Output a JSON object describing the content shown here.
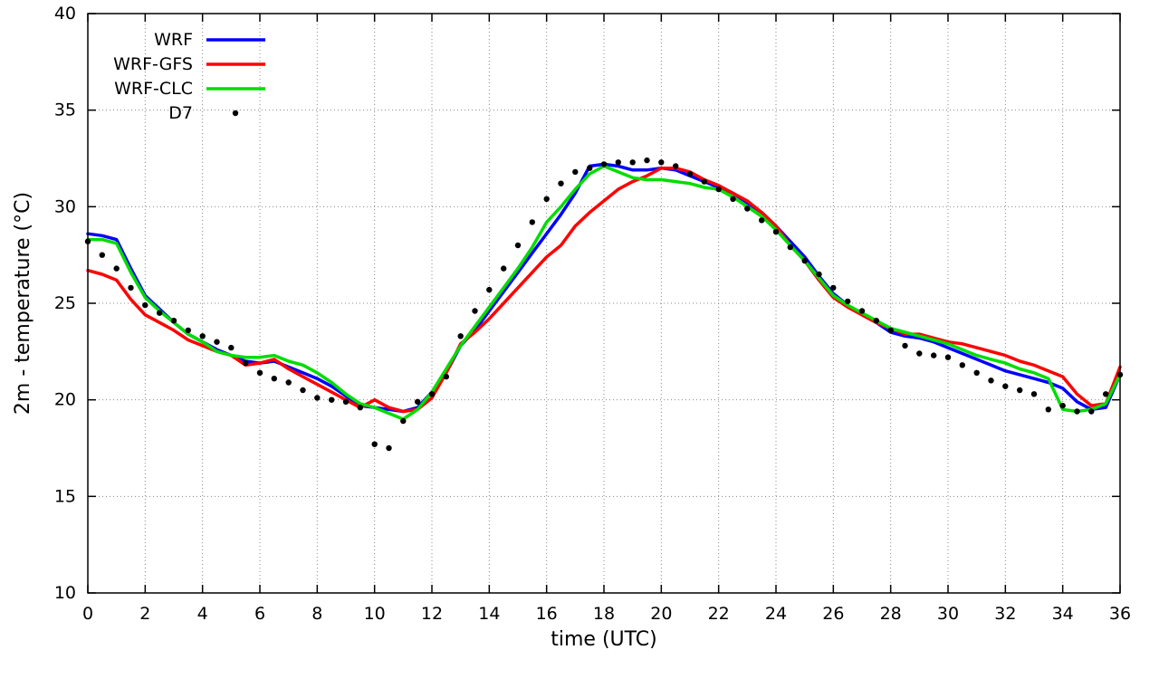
{
  "figure": {
    "background": "#ffffff",
    "grid_color": "#888888",
    "axis_color": "#000000"
  },
  "chart_data": {
    "type": "line",
    "title": "",
    "xlabel": "time (UTC)",
    "ylabel": "2m - temperature (°C)",
    "xlim": [
      0,
      36
    ],
    "ylim": [
      10,
      40
    ],
    "xticks": [
      0,
      2,
      4,
      6,
      8,
      10,
      12,
      14,
      16,
      18,
      20,
      22,
      24,
      26,
      28,
      30,
      32,
      34,
      36
    ],
    "yticks": [
      10,
      15,
      20,
      25,
      30,
      35,
      40
    ],
    "grid": "dotted",
    "legend_position": "top-left",
    "x": [
      0,
      0.5,
      1,
      1.5,
      2,
      2.5,
      3,
      3.5,
      4,
      4.5,
      5,
      5.5,
      6,
      6.5,
      7,
      7.5,
      8,
      8.5,
      9,
      9.5,
      10,
      10.5,
      11,
      11.5,
      12,
      12.5,
      13,
      13.5,
      14,
      14.5,
      15,
      15.5,
      16,
      16.5,
      17,
      17.5,
      18,
      18.5,
      19,
      19.5,
      20,
      20.5,
      21,
      21.5,
      22,
      22.5,
      23,
      23.5,
      24,
      24.5,
      25,
      25.5,
      26,
      26.5,
      27,
      27.5,
      28,
      28.5,
      29,
      29.5,
      30,
      30.5,
      31,
      31.5,
      32,
      32.5,
      33,
      33.5,
      34,
      34.5,
      35,
      35.5,
      36
    ],
    "series": [
      {
        "name": "WRF",
        "color": "#0000ff",
        "style": "line",
        "width": 3.5,
        "values": [
          28.6,
          28.5,
          28.3,
          26.8,
          25.4,
          24.7,
          24.0,
          23.4,
          23.0,
          22.6,
          22.3,
          22.0,
          21.9,
          22.0,
          21.7,
          21.4,
          21.1,
          20.7,
          20.2,
          19.7,
          19.6,
          19.5,
          19.4,
          19.6,
          20.4,
          21.4,
          22.8,
          23.6,
          24.6,
          25.6,
          26.6,
          27.6,
          28.6,
          29.6,
          30.7,
          32.1,
          32.2,
          32.1,
          31.9,
          31.9,
          32.0,
          31.9,
          31.6,
          31.3,
          31.0,
          30.7,
          30.2,
          29.7,
          29.0,
          28.2,
          27.4,
          26.4,
          25.5,
          24.9,
          24.4,
          24.0,
          23.5,
          23.3,
          23.2,
          23.0,
          22.7,
          22.4,
          22.1,
          21.8,
          21.5,
          21.3,
          21.1,
          20.9,
          20.6,
          19.9,
          19.5,
          19.6,
          21.3
        ]
      },
      {
        "name": "WRF-GFS",
        "color": "#ff0000",
        "style": "line",
        "width": 3.5,
        "values": [
          26.7,
          26.5,
          26.2,
          25.2,
          24.4,
          24.0,
          23.6,
          23.1,
          22.8,
          22.5,
          22.3,
          21.8,
          21.9,
          22.1,
          21.6,
          21.2,
          20.8,
          20.4,
          20.0,
          19.6,
          20.0,
          19.6,
          19.4,
          19.5,
          20.1,
          21.4,
          22.9,
          23.5,
          24.2,
          25.0,
          25.8,
          26.6,
          27.4,
          28.0,
          29.0,
          29.7,
          30.3,
          30.9,
          31.3,
          31.6,
          32.0,
          32.0,
          31.8,
          31.4,
          31.1,
          30.7,
          30.3,
          29.7,
          29.0,
          28.0,
          27.2,
          26.2,
          25.3,
          24.8,
          24.4,
          24.0,
          23.7,
          23.4,
          23.4,
          23.2,
          23.0,
          22.9,
          22.7,
          22.5,
          22.3,
          22.0,
          21.8,
          21.5,
          21.2,
          20.3,
          19.7,
          19.8,
          21.7
        ]
      },
      {
        "name": "WRF-CLC",
        "color": "#00dd00",
        "style": "line",
        "width": 3.5,
        "values": [
          28.3,
          28.3,
          28.1,
          26.6,
          25.3,
          24.6,
          24.0,
          23.4,
          23.0,
          22.5,
          22.3,
          22.2,
          22.2,
          22.3,
          22.0,
          21.8,
          21.4,
          20.9,
          20.3,
          19.8,
          19.6,
          19.3,
          19.0,
          19.5,
          20.4,
          21.6,
          22.8,
          23.8,
          24.8,
          25.8,
          26.8,
          27.9,
          29.2,
          30.0,
          30.9,
          31.7,
          32.1,
          31.8,
          31.5,
          31.4,
          31.4,
          31.3,
          31.2,
          31.0,
          30.9,
          30.5,
          30.0,
          29.5,
          28.8,
          28.0,
          27.2,
          26.3,
          25.4,
          24.9,
          24.5,
          24.1,
          23.7,
          23.5,
          23.3,
          23.1,
          22.9,
          22.6,
          22.3,
          22.1,
          21.9,
          21.6,
          21.4,
          21.1,
          19.5,
          19.4,
          19.5,
          19.8,
          21.3
        ]
      },
      {
        "name": "D7",
        "color": "#000000",
        "style": "points",
        "marker": "dot",
        "size": 3.2,
        "values": [
          28.2,
          27.5,
          26.8,
          25.8,
          24.9,
          24.5,
          24.1,
          23.6,
          23.3,
          23.0,
          22.7,
          21.9,
          21.4,
          21.1,
          20.9,
          20.5,
          20.1,
          20.0,
          19.9,
          19.6,
          17.7,
          17.5,
          18.9,
          19.9,
          20.3,
          21.2,
          23.3,
          24.6,
          25.7,
          26.8,
          28.0,
          29.2,
          30.4,
          31.2,
          31.8,
          32.0,
          32.2,
          32.3,
          32.3,
          32.4,
          32.3,
          32.1,
          31.7,
          31.3,
          30.9,
          30.4,
          29.9,
          29.3,
          28.7,
          27.9,
          27.2,
          26.5,
          25.8,
          25.1,
          24.6,
          24.1,
          23.6,
          22.8,
          22.4,
          22.3,
          22.2,
          21.8,
          21.4,
          21.0,
          20.7,
          20.5,
          20.3,
          19.5,
          19.7,
          19.4,
          19.4,
          20.3,
          21.3
        ]
      }
    ]
  }
}
